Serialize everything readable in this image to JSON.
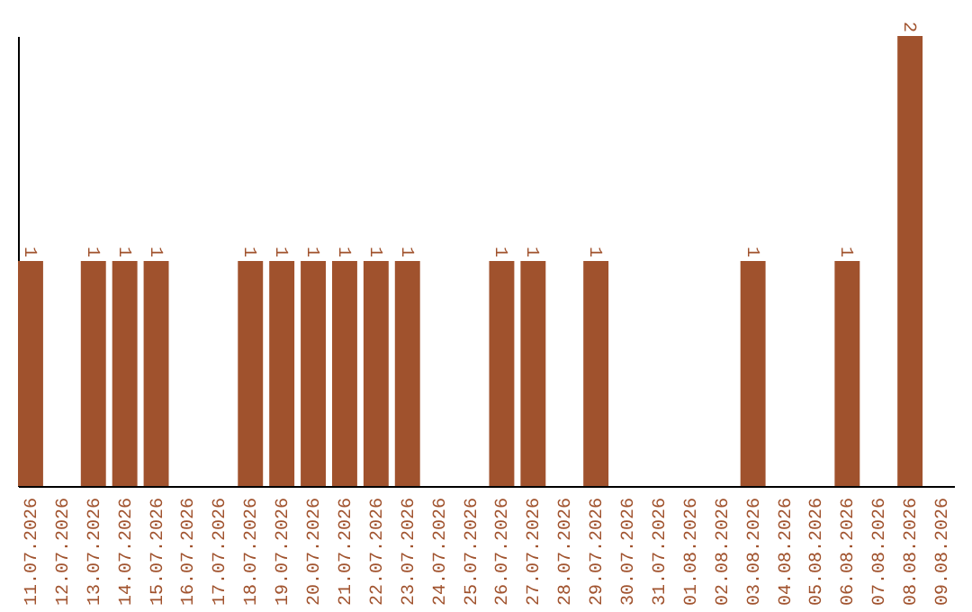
{
  "chart_data": {
    "type": "bar",
    "categories": [
      "11.07.2026",
      "12.07.2026",
      "13.07.2026",
      "14.07.2026",
      "15.07.2026",
      "16.07.2026",
      "17.07.2026",
      "18.07.2026",
      "19.07.2026",
      "20.07.2026",
      "21.07.2026",
      "22.07.2026",
      "23.07.2026",
      "24.07.2026",
      "25.07.2026",
      "26.07.2026",
      "27.07.2026",
      "28.07.2026",
      "29.07.2026",
      "30.07.2026",
      "31.07.2026",
      "01.08.2026",
      "02.08.2026",
      "03.08.2026",
      "04.08.2026",
      "05.08.2026",
      "06.08.2026",
      "07.08.2026",
      "08.08.2026",
      "09.08.2026"
    ],
    "values": [
      1,
      0,
      1,
      1,
      1,
      0,
      0,
      1,
      1,
      1,
      1,
      1,
      1,
      0,
      0,
      1,
      1,
      0,
      1,
      0,
      0,
      0,
      0,
      1,
      0,
      0,
      1,
      0,
      2,
      0
    ],
    "value_labels": [
      "1",
      null,
      "1",
      "1",
      "1",
      null,
      null,
      "1",
      "1",
      "1",
      "1",
      "1",
      "1",
      null,
      null,
      "1",
      "1",
      null,
      "1",
      null,
      null,
      null,
      null,
      "1",
      null,
      null,
      "1",
      null,
      "2",
      null
    ],
    "color": "#a0522d",
    "tick_labels": "x",
    "grid": false
  }
}
